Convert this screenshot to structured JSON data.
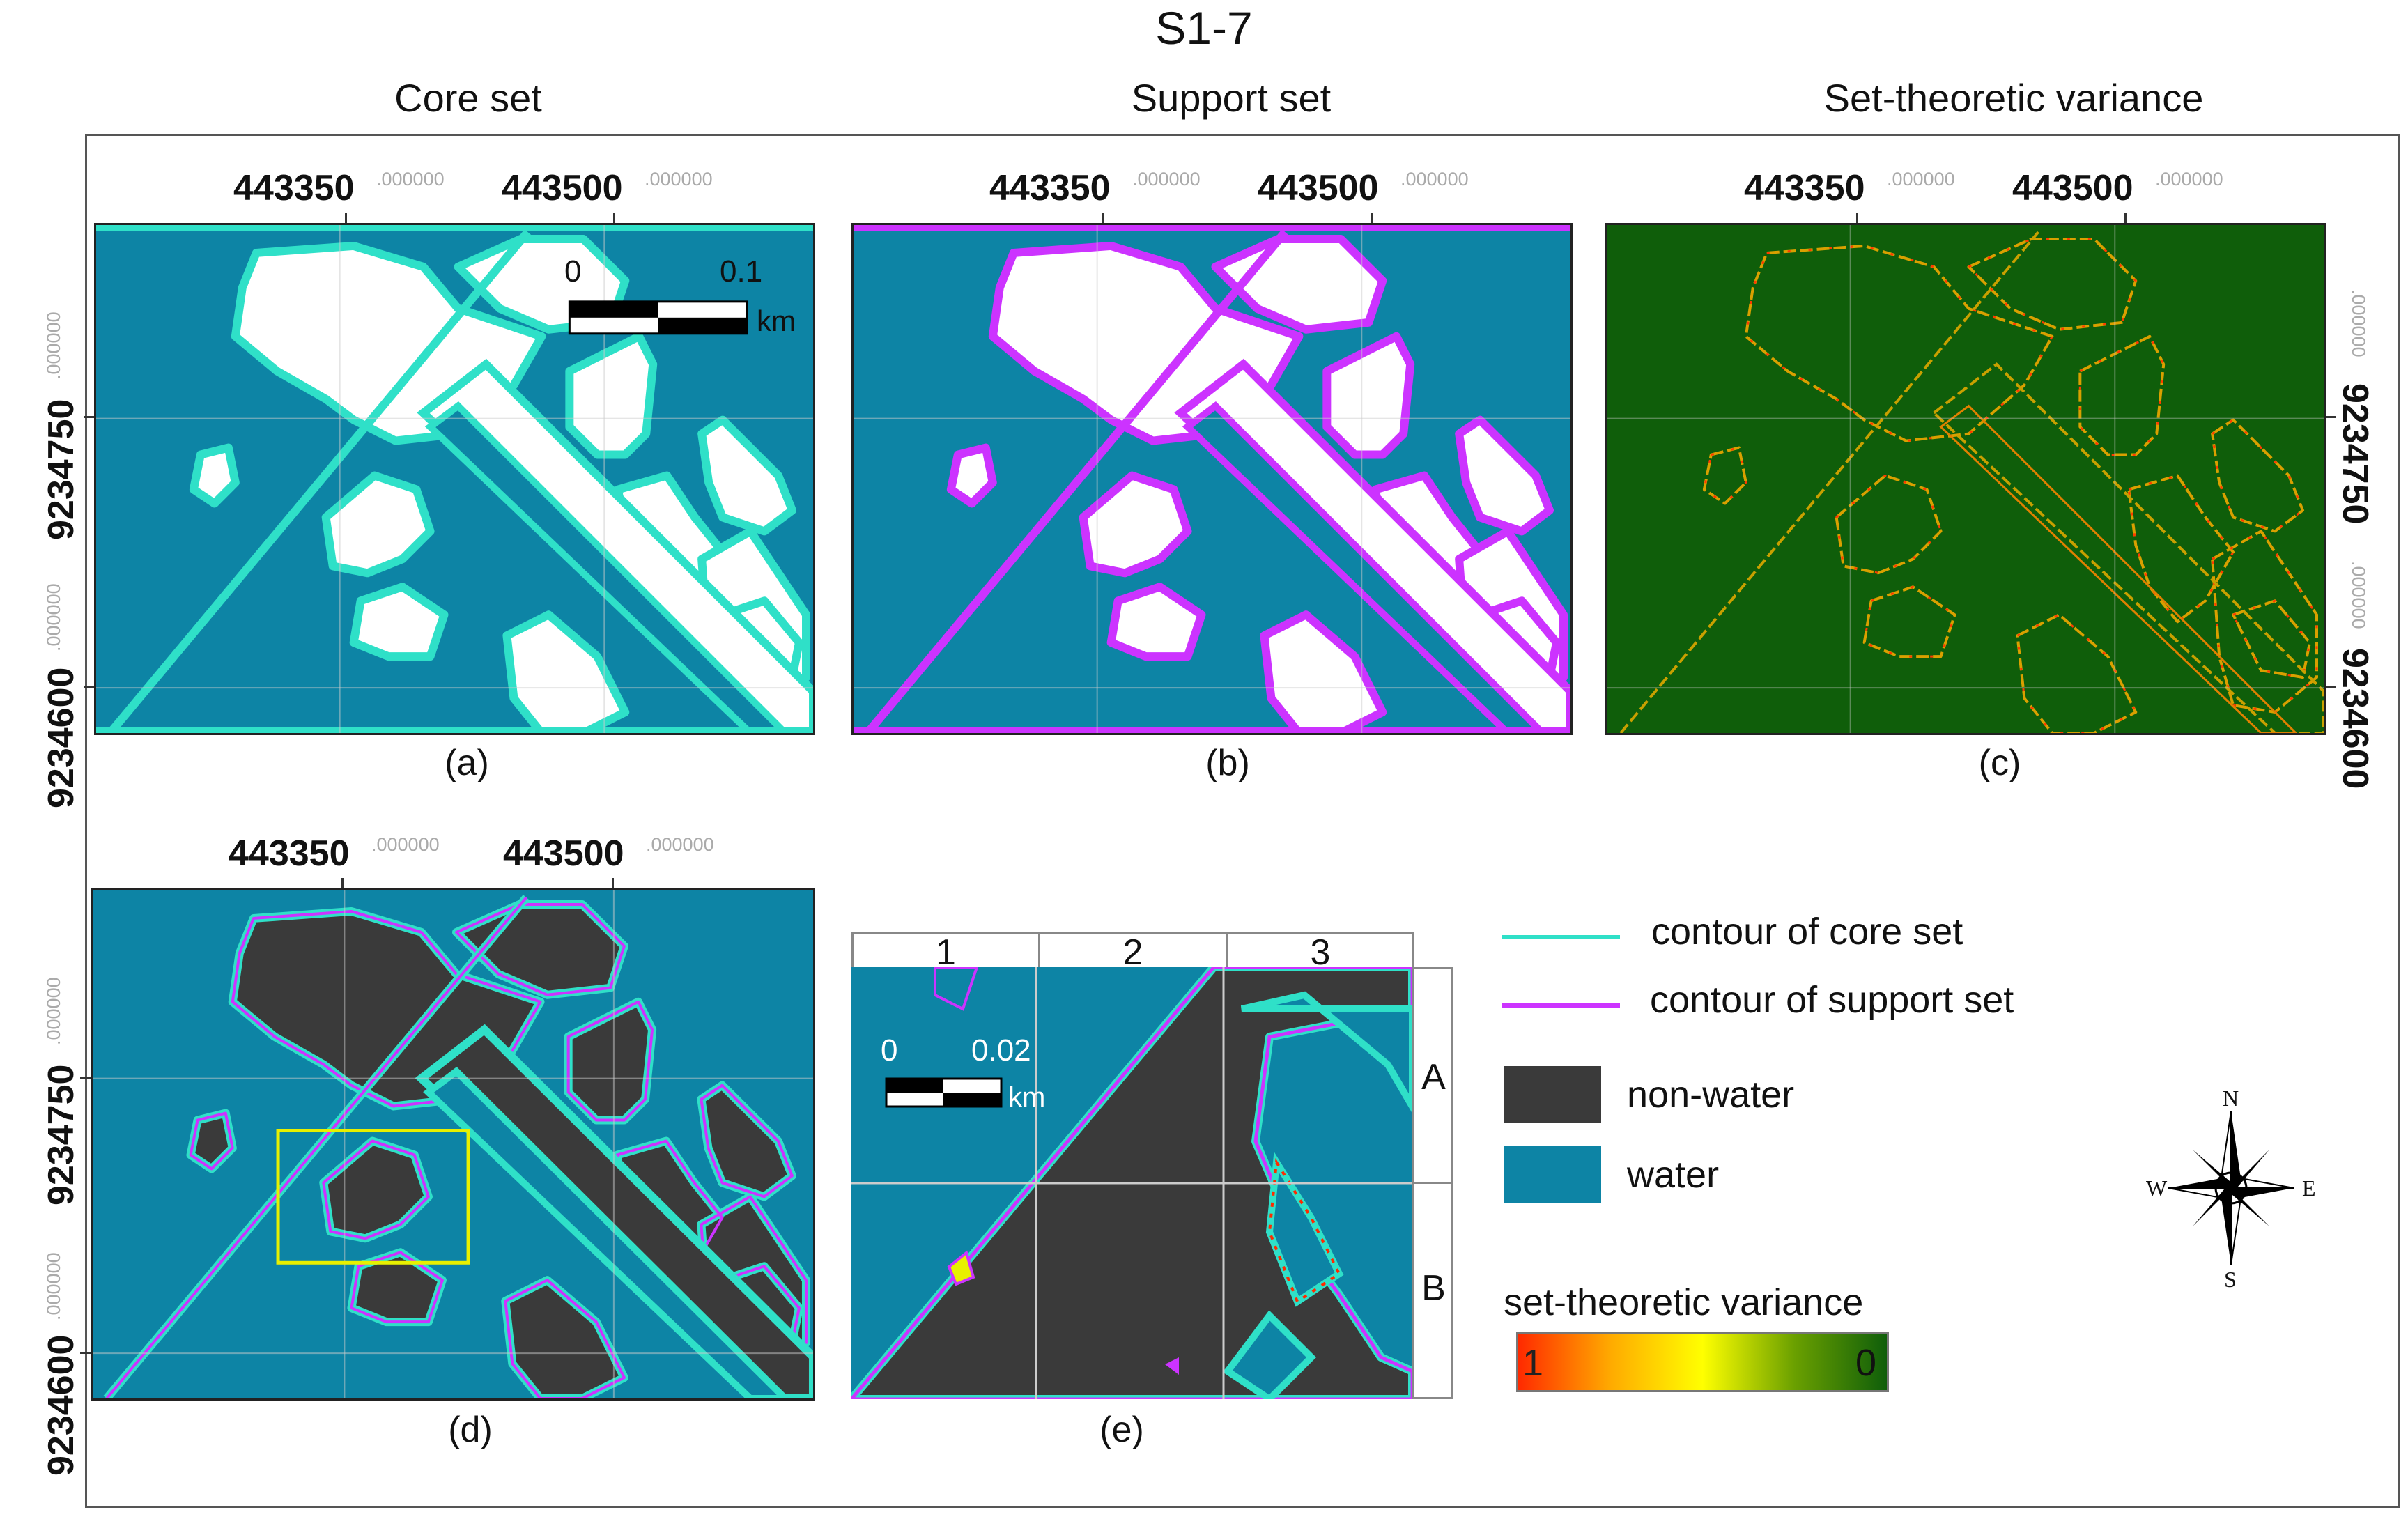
{
  "figure_title": "S1-7",
  "column_titles": {
    "a": "Core set",
    "b": "Support set",
    "c": "Set-theoretic variance"
  },
  "x_ticks": [
    {
      "value": "443350",
      "suffix": ".000000"
    },
    {
      "value": "443500",
      "suffix": ".000000"
    }
  ],
  "y_ticks": [
    {
      "value": "9234750",
      "suffix": ".000000"
    },
    {
      "value": "9234600",
      "suffix": ".000000"
    }
  ],
  "captions": {
    "a": "(a)",
    "b": "(b)",
    "c": "(c)",
    "d": "(d)",
    "e": "(e)"
  },
  "scalebar_a": {
    "start": "0",
    "end": "0.1",
    "unit": "km"
  },
  "scalebar_e": {
    "start": "0",
    "end": "0.02",
    "unit": "km"
  },
  "grid_e": {
    "columns": [
      "1",
      "2",
      "3"
    ],
    "rows": [
      "A",
      "B"
    ]
  },
  "legend": {
    "core_contour": "contour of core set",
    "support_contour": "contour of support set",
    "non_water": "non-water",
    "water": "water",
    "variance_title": "set-theoretic variance",
    "variance_high": "1",
    "variance_low": "0"
  },
  "compass": {
    "n": "N",
    "s": "S",
    "e": "E",
    "w": "W"
  },
  "colors": {
    "water": "#0d84a5",
    "non_water_dark": "#3a3a3a",
    "core_contour": "#2fe0c8",
    "support_contour": "#cc33ff",
    "variance_bg": "#0f5e0a",
    "variance_high": "#ff2a00",
    "variance_mid": "#ffff00"
  }
}
